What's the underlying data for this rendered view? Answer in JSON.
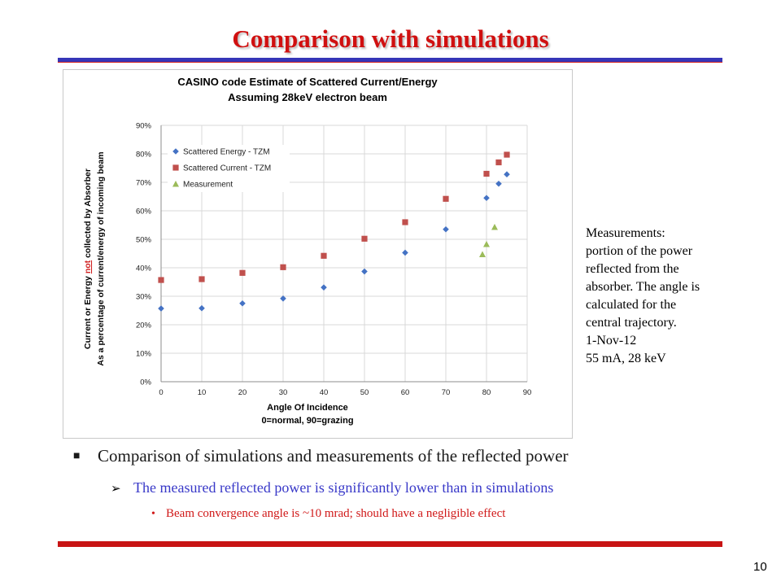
{
  "slide": {
    "title": "Comparison with simulations",
    "page_number": "10",
    "colors": {
      "title": "#d01010",
      "rule_top": "#3636b8",
      "rule_bottom": "#c81414"
    }
  },
  "chart_data": {
    "type": "scatter",
    "title_line1": "CASINO code Estimate of Scattered Current/Energy",
    "title_line2": "Assuming 28keV electron beam",
    "xlabel_line1": "Angle Of Incidence",
    "xlabel_line2": "0=normal, 90=grazing",
    "ylabel_line1_pre": "Current or Energy ",
    "ylabel_line1_em": "not",
    "ylabel_line1_post": " collected by Absorber",
    "ylabel_line2": "As a percentage of current/energy of incoming beam",
    "xlim": [
      0,
      90
    ],
    "ylim": [
      0,
      0.9
    ],
    "x_ticks": [
      "0",
      "10",
      "20",
      "30",
      "40",
      "50",
      "60",
      "70",
      "80",
      "90"
    ],
    "y_ticks": [
      "0%",
      "10%",
      "20%",
      "30%",
      "40%",
      "50%",
      "60%",
      "70%",
      "80%",
      "90%"
    ],
    "grid": true,
    "legend_position": "top-left",
    "series": [
      {
        "name": "Scattered Energy - TZM",
        "marker": "diamond",
        "color": "#4472c4",
        "x": [
          0,
          10,
          20,
          30,
          40,
          50,
          60,
          70,
          80,
          83,
          85
        ],
        "y": [
          0.257,
          0.258,
          0.275,
          0.292,
          0.331,
          0.387,
          0.453,
          0.535,
          0.645,
          0.695,
          0.728
        ]
      },
      {
        "name": "Scattered Current - TZM",
        "marker": "square",
        "color": "#c0504d",
        "x": [
          0,
          10,
          20,
          30,
          40,
          50,
          60,
          70,
          80,
          83,
          85
        ],
        "y": [
          0.357,
          0.36,
          0.382,
          0.402,
          0.442,
          0.502,
          0.56,
          0.642,
          0.73,
          0.77,
          0.797
        ]
      },
      {
        "name": "Measurement",
        "marker": "triangle",
        "color": "#9bbb59",
        "x": [
          79,
          80,
          82
        ],
        "y": [
          0.447,
          0.483,
          0.543
        ]
      }
    ]
  },
  "side_note": {
    "lines": [
      "Measurements:",
      "portion of the power",
      "reflected from the",
      "absorber. The angle is",
      "calculated for the",
      "central trajectory.",
      "1-Nov-12",
      "55 mA, 28 keV"
    ]
  },
  "bullets": {
    "level1": "Comparison of simulations and measurements of the reflected power",
    "level2": "The measured reflected power is significantly lower than in simulations",
    "level3": "Beam convergence angle is ~10 mrad; should have a negligible effect",
    "level1_marker": "■",
    "level2_marker": "➢",
    "level3_marker": "•"
  }
}
